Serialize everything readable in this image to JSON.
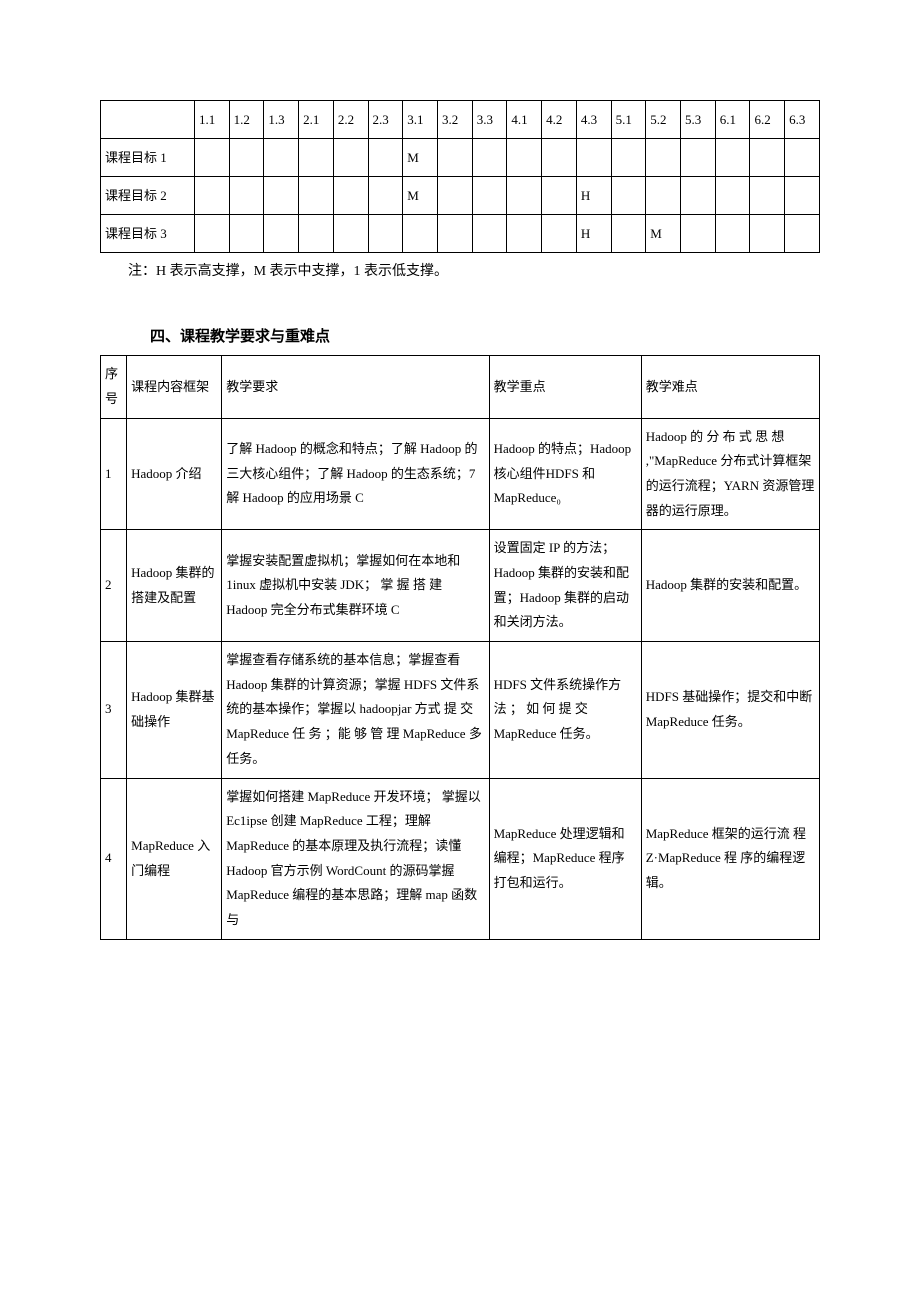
{
  "matrix": {
    "headers": [
      "",
      "1.1",
      "1.2",
      "1.3",
      "2.1",
      "2.2",
      "2.3",
      "3.1",
      "3.2",
      "3.3",
      "4.1",
      "4.2",
      "4.3",
      "5.1",
      "5.2",
      "5.3",
      "6.1",
      "6.2",
      "6.3"
    ],
    "rows": [
      {
        "label": "课程目标 1",
        "cells": [
          "",
          "",
          "",
          "",
          "",
          "",
          "M",
          "",
          "",
          "",
          "",
          "",
          "",
          "",
          "",
          "",
          "",
          ""
        ]
      },
      {
        "label": "课程目标 2",
        "cells": [
          "",
          "",
          "",
          "",
          "",
          "",
          "M",
          "",
          "",
          "",
          "",
          "H",
          "",
          "",
          "",
          "",
          "",
          ""
        ]
      },
      {
        "label": "课程目标 3",
        "cells": [
          "",
          "",
          "",
          "",
          "",
          "",
          "",
          "",
          "",
          "",
          "",
          "H",
          "",
          "M",
          "",
          "",
          "",
          ""
        ]
      }
    ],
    "note": "注：H 表示高支撑，M 表示中支撑，1 表示低支撑。"
  },
  "section_heading": "四、课程教学要求与重难点",
  "content_table": {
    "header": {
      "seq": "序号",
      "frame": "课程内容框架",
      "req": "教学要求",
      "key": "教学重点",
      "diff": "教学难点"
    },
    "rows": [
      {
        "seq": "1",
        "frame": "Hadoop 介绍",
        "req": "了解 Hadoop 的概念和特点；了解 Hadoop 的三大核心组件；了解 Hadoop 的生态系统；7 解 Hadoop 的应用场景 C",
        "key": "Hadoop 的特点；Hadoop 核心组件HDFS              和 MapReduce₀",
        "diff": "Hadoop 的 分 布 式 思 想 ,\"MapReduce 分布式计算框架的运行流程；YARN 资源管理器的运行原理。"
      },
      {
        "seq": "2",
        "frame": "Hadoop 集群的搭建及配置",
        "req": "掌握安装配置虚拟机；掌握如何在本地和 1inux 虚拟机中安装 JDK； 掌 握 搭 建 Hadoop 完全分布式集群环境 C",
        "key": "设置固定 IP 的方法；Hadoop 集群的安装和配置；Hadoop 集群的启动和关闭方法。",
        "diff": "Hadoop 集群的安装和配置。"
      },
      {
        "seq": "3",
        "frame": "Hadoop 集群基础操作",
        "req": "掌握查看存储系统的基本信息；掌握查看 Hadoop 集群的计算资源；掌握 HDFS 文件系统的基本操作；掌握以 hadoopjar 方式 提 交 MapReduce 任 务 ；能 够 管 理 MapReduce 多任务。",
        "key": "HDFS 文件系统操作方 法 ； 如 何 提 交 MapReduce 任务。",
        "diff": "HDFS 基础操作；提交和中断 MapReduce 任务。"
      },
      {
        "seq": "4",
        "frame": "MapReduce 入门编程",
        "req": "掌握如何搭建 MapReduce 开发环境； 掌握以 Ec1ipse 创建 MapReduce 工程；理解 MapReduce 的基本原理及执行流程；读懂 Hadoop 官方示例 WordCount 的源码掌握 MapReduce 编程的基本思路；理解 map 函数与",
        "key": "MapReduce 处理逻辑和编程；MapReduce 程序打包和运行。",
        "diff": "MapReduce 框架的运行流 程 Z·MapReduce 程 序的编程逻辑。"
      }
    ]
  }
}
